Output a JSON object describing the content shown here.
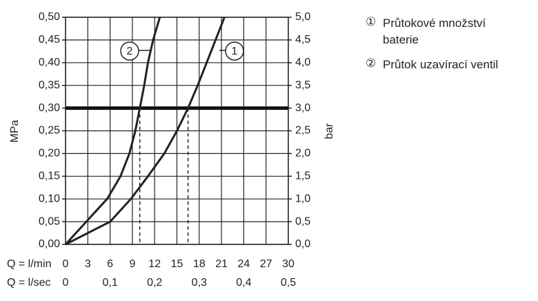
{
  "chart_data": {
    "type": "line",
    "ylabel": "MPa",
    "y2label": "bar",
    "xlabel": "Q = l/min",
    "x2label": "Q = l/sec",
    "xlim": [
      0,
      30
    ],
    "xticks": [
      0,
      3,
      6,
      9,
      12,
      15,
      18,
      21,
      24,
      27,
      30
    ],
    "x2lim": [
      0,
      0.5
    ],
    "x2ticks": [
      0,
      {
        "value": 0.1,
        "label": "0,1"
      },
      {
        "value": 0.2,
        "label": "0,2"
      },
      {
        "value": 0.3,
        "label": "0,3"
      },
      {
        "value": 0.4,
        "label": "0,4"
      },
      {
        "value": 0.5,
        "label": "0,5"
      }
    ],
    "ylim": [
      0,
      0.5
    ],
    "yticks": [
      {
        "value": 0,
        "label": "0,00"
      },
      {
        "value": 0.05,
        "label": "0,05"
      },
      {
        "value": 0.1,
        "label": "0,10"
      },
      {
        "value": 0.15,
        "label": "0,15"
      },
      {
        "value": 0.2,
        "label": "0,20"
      },
      {
        "value": 0.25,
        "label": "0,25"
      },
      {
        "value": 0.3,
        "label": "0,30"
      },
      {
        "value": 0.35,
        "label": "0,35"
      },
      {
        "value": 0.4,
        "label": "0,40"
      },
      {
        "value": 0.45,
        "label": "0,45"
      },
      {
        "value": 0.5,
        "label": "0,50"
      }
    ],
    "y2lim": [
      0,
      5
    ],
    "y2ticks": [
      {
        "value": 0,
        "label": "0,0"
      },
      {
        "value": 0.5,
        "label": "0,5"
      },
      {
        "value": 1,
        "label": "1,0"
      },
      {
        "value": 1.5,
        "label": "1,5"
      },
      {
        "value": 2,
        "label": "2,0"
      },
      {
        "value": 2.5,
        "label": "2,5"
      },
      {
        "value": 3,
        "label": "3,0"
      },
      {
        "value": 3.5,
        "label": "3,5"
      },
      {
        "value": 4,
        "label": "4,0"
      },
      {
        "value": 4.5,
        "label": "4,5"
      },
      {
        "value": 5,
        "label": "5,0"
      }
    ],
    "grid": true,
    "hline": 0.3,
    "series": [
      {
        "name": "Průtokové množství baterie",
        "label": "1",
        "color": "#222222",
        "x": [
          0,
          6.0,
          8.8,
          11.1,
          13.3,
          15.0,
          16.5,
          17.8,
          19.0,
          20.2,
          21.4
        ],
        "values": [
          0,
          0.05,
          0.1,
          0.15,
          0.2,
          0.25,
          0.3,
          0.35,
          0.4,
          0.45,
          0.5
        ]
      },
      {
        "name": "Průtok uzavírací ventil",
        "label": "2",
        "color": "#222222",
        "x": [
          0,
          2.8,
          5.6,
          7.4,
          8.6,
          9.4,
          10.0,
          10.6,
          11.1,
          11.8,
          12.7
        ],
        "values": [
          0,
          0.05,
          0.1,
          0.15,
          0.2,
          0.25,
          0.3,
          0.35,
          0.4,
          0.45,
          0.5
        ]
      }
    ]
  }
}
